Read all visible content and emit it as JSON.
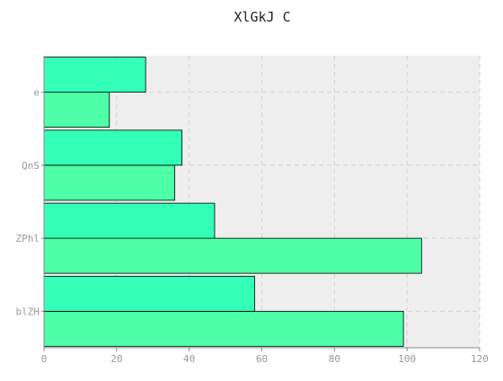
{
  "chart_data": {
    "type": "bar",
    "orientation": "horizontal",
    "title": "XlGkJ  C",
    "xlabel": "",
    "ylabel": "",
    "categories": [
      "blZH",
      "ZPhl",
      "QnS",
      "e"
    ],
    "series": [
      {
        "values": [
          99,
          104,
          36,
          18
        ],
        "color": "#4dffa6"
      },
      {
        "values": [
          58,
          47,
          38,
          28
        ],
        "color": "#33ffb8"
      }
    ],
    "xlim": [
      0,
      120
    ],
    "xticks": [
      0,
      20,
      40,
      60,
      80,
      100,
      120
    ],
    "grid": true,
    "legend": "none",
    "colors": {
      "plot_background": "#eeeeee",
      "grid": "#d2d2d2",
      "bar_edge": "#000000",
      "axis": "#888888",
      "tick_label": "#999999",
      "title": "#222222"
    }
  }
}
